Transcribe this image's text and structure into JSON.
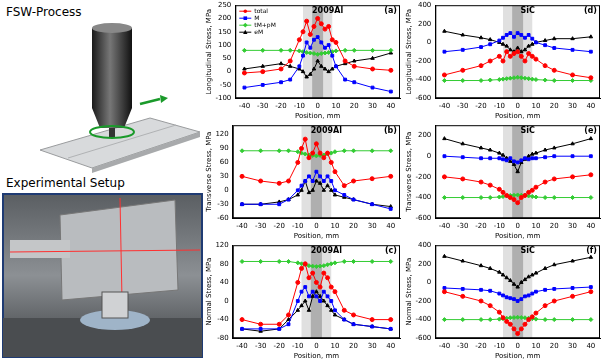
{
  "labels": {
    "process": "FSW-Process",
    "setup": "Experimental Setup"
  },
  "chart_data": [
    {
      "type": "line",
      "annotations": [
        "(a)",
        "2009Al"
      ],
      "xlabel": "Position, mm",
      "ylabel": "Longitudinal Stress, MPa",
      "xlim": [
        -45,
        45
      ],
      "xticks": [
        -40,
        -30,
        -20,
        -10,
        0,
        10,
        20,
        30,
        40
      ],
      "ylim": [
        -100,
        250
      ],
      "yticks": [
        -100,
        -50,
        0,
        50,
        100,
        150,
        200,
        250
      ],
      "grid": false,
      "legend": "upper left",
      "bands": [
        {
          "from": -8,
          "to": 8
        },
        {
          "from": -3,
          "to": 3
        }
      ],
      "x": [
        -40,
        -30,
        -20,
        -15,
        -10,
        -8,
        -6,
        -4,
        -2,
        0,
        2,
        4,
        6,
        8,
        10,
        15,
        20,
        30,
        40
      ],
      "series": [
        {
          "name": "total",
          "color": "#ff0000",
          "marker": "circle",
          "values": [
            -5,
            0,
            10,
            40,
            120,
            150,
            190,
            140,
            170,
            200,
            180,
            160,
            170,
            120,
            110,
            40,
            20,
            10,
            5
          ]
        },
        {
          "name": "M",
          "color": "#0000ff",
          "marker": "square",
          "values": [
            -60,
            -50,
            -40,
            -30,
            20,
            60,
            110,
            90,
            120,
            130,
            110,
            90,
            100,
            60,
            20,
            -30,
            -40,
            -60,
            -75
          ]
        },
        {
          "name": "tM+pM",
          "color": "#33cc33",
          "marker": "diamond",
          "values": [
            80,
            80,
            80,
            80,
            78,
            75,
            72,
            70,
            68,
            65,
            68,
            70,
            72,
            75,
            78,
            80,
            80,
            80,
            80
          ]
        },
        {
          "name": "eM",
          "color": "#000000",
          "marker": "triangle",
          "values": [
            10,
            20,
            30,
            20,
            10,
            0,
            -20,
            -10,
            10,
            40,
            20,
            10,
            0,
            10,
            20,
            30,
            40,
            50,
            70
          ]
        }
      ]
    },
    {
      "type": "line",
      "annotations": [
        "(b)",
        "2009Al"
      ],
      "xlabel": "Position, mm",
      "ylabel": "Transverse Stress, MPa",
      "xlim": [
        -45,
        45
      ],
      "xticks": [
        -40,
        -30,
        -20,
        -10,
        0,
        10,
        20,
        30,
        40
      ],
      "ylim": [
        -60,
        140
      ],
      "yticks": [
        -60,
        -30,
        0,
        30,
        60,
        90,
        120
      ],
      "grid": false,
      "bands": [
        {
          "from": -8,
          "to": 8
        },
        {
          "from": -3,
          "to": 3
        }
      ],
      "x": [
        -40,
        -30,
        -20,
        -15,
        -10,
        -8,
        -6,
        -4,
        -2,
        0,
        2,
        4,
        6,
        8,
        10,
        15,
        20,
        30,
        40
      ],
      "series": [
        {
          "name": "total",
          "color": "#ff0000",
          "marker": "circle",
          "values": [
            30,
            20,
            15,
            20,
            60,
            90,
            110,
            70,
            80,
            100,
            80,
            70,
            80,
            60,
            40,
            10,
            20,
            25,
            30
          ]
        },
        {
          "name": "M",
          "color": "#0000ff",
          "marker": "square",
          "values": [
            -30,
            -30,
            -30,
            -20,
            0,
            10,
            20,
            30,
            20,
            40,
            30,
            20,
            30,
            20,
            0,
            -10,
            -20,
            -30,
            -40
          ]
        },
        {
          "name": "tM+pM",
          "color": "#33cc33",
          "marker": "diamond",
          "values": [
            85,
            85,
            85,
            85,
            83,
            80,
            78,
            76,
            75,
            74,
            75,
            76,
            78,
            80,
            83,
            85,
            85,
            85,
            85
          ]
        },
        {
          "name": "eM",
          "color": "#000000",
          "marker": "triangle",
          "values": [
            -30,
            -30,
            -25,
            -20,
            -10,
            0,
            20,
            -5,
            0,
            20,
            15,
            0,
            10,
            0,
            -10,
            -15,
            -20,
            -30,
            -35
          ]
        }
      ]
    },
    {
      "type": "line",
      "annotations": [
        "(c)",
        "2009Al"
      ],
      "xlabel": "Position, mm",
      "ylabel": "Normal Stress, MPa",
      "xlim": [
        -45,
        45
      ],
      "xticks": [
        -40,
        -30,
        -20,
        -10,
        0,
        10,
        20,
        30,
        40
      ],
      "ylim": [
        -80,
        120
      ],
      "yticks": [
        -80,
        -40,
        0,
        40,
        80,
        120
      ],
      "grid": false,
      "bands": [
        {
          "from": -8,
          "to": 8
        },
        {
          "from": -3,
          "to": 3
        }
      ],
      "x": [
        -40,
        -30,
        -20,
        -15,
        -10,
        -8,
        -6,
        -4,
        -2,
        0,
        2,
        4,
        6,
        8,
        10,
        15,
        20,
        30,
        40
      ],
      "series": [
        {
          "name": "total",
          "color": "#ff0000",
          "marker": "circle",
          "values": [
            -40,
            -50,
            -50,
            -30,
            40,
            70,
            80,
            50,
            60,
            40,
            30,
            60,
            50,
            30,
            20,
            -20,
            -30,
            -40,
            -40
          ]
        },
        {
          "name": "M",
          "color": "#0000ff",
          "marker": "square",
          "values": [
            -60,
            -60,
            -60,
            -50,
            0,
            20,
            30,
            10,
            20,
            10,
            0,
            20,
            10,
            0,
            -20,
            -40,
            -50,
            -55,
            -60
          ]
        },
        {
          "name": "tM+pM",
          "color": "#33cc33",
          "marker": "diamond",
          "values": [
            85,
            85,
            85,
            85,
            82,
            80,
            78,
            76,
            75,
            74,
            75,
            76,
            78,
            80,
            82,
            85,
            85,
            85,
            85
          ]
        },
        {
          "name": "eM",
          "color": "#000000",
          "marker": "triangle",
          "values": [
            -60,
            -65,
            -60,
            -40,
            -20,
            -10,
            0,
            -20,
            10,
            20,
            10,
            0,
            -10,
            -20,
            -30,
            -40,
            -50,
            -55,
            -60
          ]
        }
      ]
    },
    {
      "type": "line",
      "annotations": [
        "(d)",
        "SiC"
      ],
      "xlabel": "Position, mm",
      "ylabel": "Longitudinal Stress, MPa",
      "xlim": [
        -45,
        45
      ],
      "xticks": [
        -40,
        -30,
        -20,
        -10,
        0,
        10,
        20,
        30,
        40
      ],
      "ylim": [
        -600,
        400
      ],
      "yticks": [
        -600,
        -400,
        -200,
        0,
        200,
        400
      ],
      "grid": false,
      "bands": [
        {
          "from": -8,
          "to": 8
        },
        {
          "from": -3,
          "to": 3
        }
      ],
      "x": [
        -40,
        -30,
        -20,
        -15,
        -10,
        -8,
        -6,
        -4,
        -2,
        0,
        2,
        4,
        6,
        8,
        10,
        15,
        20,
        30,
        40
      ],
      "series": [
        {
          "name": "total",
          "color": "#ff0000",
          "marker": "circle",
          "values": [
            -350,
            -300,
            -250,
            -200,
            -150,
            -200,
            -100,
            -150,
            -120,
            -100,
            -150,
            -200,
            -120,
            -150,
            -180,
            -250,
            -300,
            -350,
            -380
          ]
        },
        {
          "name": "M",
          "color": "#0000ff",
          "marker": "square",
          "values": [
            -100,
            -80,
            -50,
            -20,
            20,
            50,
            80,
            100,
            60,
            100,
            80,
            50,
            80,
            40,
            0,
            -30,
            -60,
            -80,
            -100
          ]
        },
        {
          "name": "tM+pM",
          "color": "#33cc33",
          "marker": "diamond",
          "values": [
            -410,
            -410,
            -410,
            -405,
            -400,
            -395,
            -390,
            -385,
            -380,
            -375,
            -380,
            -385,
            -390,
            -395,
            -400,
            -405,
            -410,
            -410,
            -410
          ]
        },
        {
          "name": "eM",
          "color": "#000000",
          "marker": "triangle",
          "values": [
            120,
            80,
            50,
            30,
            0,
            -20,
            -40,
            -80,
            -100,
            -60,
            -100,
            -80,
            -40,
            -20,
            0,
            20,
            40,
            40,
            60
          ]
        }
      ]
    },
    {
      "type": "line",
      "annotations": [
        "(e)",
        "SiC"
      ],
      "xlabel": "Position, mm",
      "ylabel": "Transverse Stress, MPa",
      "xlim": [
        -45,
        45
      ],
      "xticks": [
        -40,
        -30,
        -20,
        -10,
        0,
        10,
        20,
        30,
        40
      ],
      "ylim": [
        -600,
        300
      ],
      "yticks": [
        -600,
        -400,
        -200,
        0,
        200
      ],
      "grid": false,
      "bands": [
        {
          "from": -8,
          "to": 8
        },
        {
          "from": -3,
          "to": 3
        }
      ],
      "x": [
        -40,
        -30,
        -20,
        -15,
        -10,
        -8,
        -6,
        -4,
        -2,
        0,
        2,
        4,
        6,
        8,
        10,
        15,
        20,
        30,
        40
      ],
      "series": [
        {
          "name": "total",
          "color": "#ff0000",
          "marker": "circle",
          "values": [
            -200,
            -220,
            -250,
            -280,
            -320,
            -350,
            -380,
            -400,
            -420,
            -450,
            -400,
            -380,
            -350,
            -330,
            -300,
            -250,
            -220,
            -200,
            -180
          ]
        },
        {
          "name": "M",
          "color": "#0000ff",
          "marker": "square",
          "values": [
            0,
            -10,
            -20,
            -20,
            -20,
            -30,
            -40,
            -20,
            -50,
            -60,
            -40,
            -20,
            -30,
            -20,
            -20,
            -10,
            0,
            0,
            0
          ]
        },
        {
          "name": "tM+pM",
          "color": "#33cc33",
          "marker": "diamond",
          "values": [
            -400,
            -400,
            -400,
            -400,
            -395,
            -390,
            -385,
            -380,
            -378,
            -375,
            -378,
            -380,
            -385,
            -390,
            -395,
            -400,
            -400,
            -400,
            -400
          ]
        },
        {
          "name": "eM",
          "color": "#000000",
          "marker": "triangle",
          "values": [
            170,
            120,
            80,
            60,
            30,
            10,
            -20,
            -50,
            -80,
            -150,
            -60,
            -30,
            0,
            20,
            30,
            60,
            80,
            120,
            170
          ]
        }
      ]
    },
    {
      "type": "line",
      "annotations": [
        "(f)",
        "SiC"
      ],
      "xlabel": "Position, mm",
      "ylabel": "Normal Stress, MPa",
      "xlim": [
        -45,
        45
      ],
      "xticks": [
        -40,
        -30,
        -20,
        -10,
        0,
        10,
        20,
        30,
        40
      ],
      "ylim": [
        -600,
        400
      ],
      "yticks": [
        -600,
        -400,
        -200,
        0,
        200,
        400
      ],
      "grid": false,
      "bands": [
        {
          "from": -8,
          "to": 8
        },
        {
          "from": -3,
          "to": 3
        }
      ],
      "x": [
        -40,
        -30,
        -20,
        -15,
        -10,
        -8,
        -6,
        -4,
        -2,
        0,
        2,
        4,
        6,
        8,
        10,
        15,
        20,
        30,
        40
      ],
      "series": [
        {
          "name": "total",
          "color": "#ff0000",
          "marker": "circle",
          "values": [
            -100,
            -150,
            -200,
            -250,
            -320,
            -380,
            -420,
            -450,
            -500,
            -550,
            -500,
            -450,
            -400,
            -370,
            -330,
            -250,
            -200,
            -150,
            -100
          ]
        },
        {
          "name": "M",
          "color": "#0000ff",
          "marker": "square",
          "values": [
            -60,
            -70,
            -80,
            -90,
            -120,
            -140,
            -160,
            -170,
            -180,
            -200,
            -180,
            -150,
            -140,
            -120,
            -100,
            -80,
            -70,
            -60,
            -50
          ]
        },
        {
          "name": "tM+pM",
          "color": "#33cc33",
          "marker": "diamond",
          "values": [
            -400,
            -400,
            -400,
            -400,
            -395,
            -390,
            -385,
            -380,
            -378,
            -375,
            -378,
            -380,
            -385,
            -390,
            -395,
            -400,
            -400,
            -400,
            -400
          ]
        },
        {
          "name": "eM",
          "color": "#000000",
          "marker": "triangle",
          "values": [
            280,
            230,
            180,
            150,
            110,
            80,
            50,
            20,
            -20,
            -50,
            0,
            30,
            60,
            80,
            100,
            150,
            190,
            230,
            270
          ]
        }
      ]
    }
  ]
}
